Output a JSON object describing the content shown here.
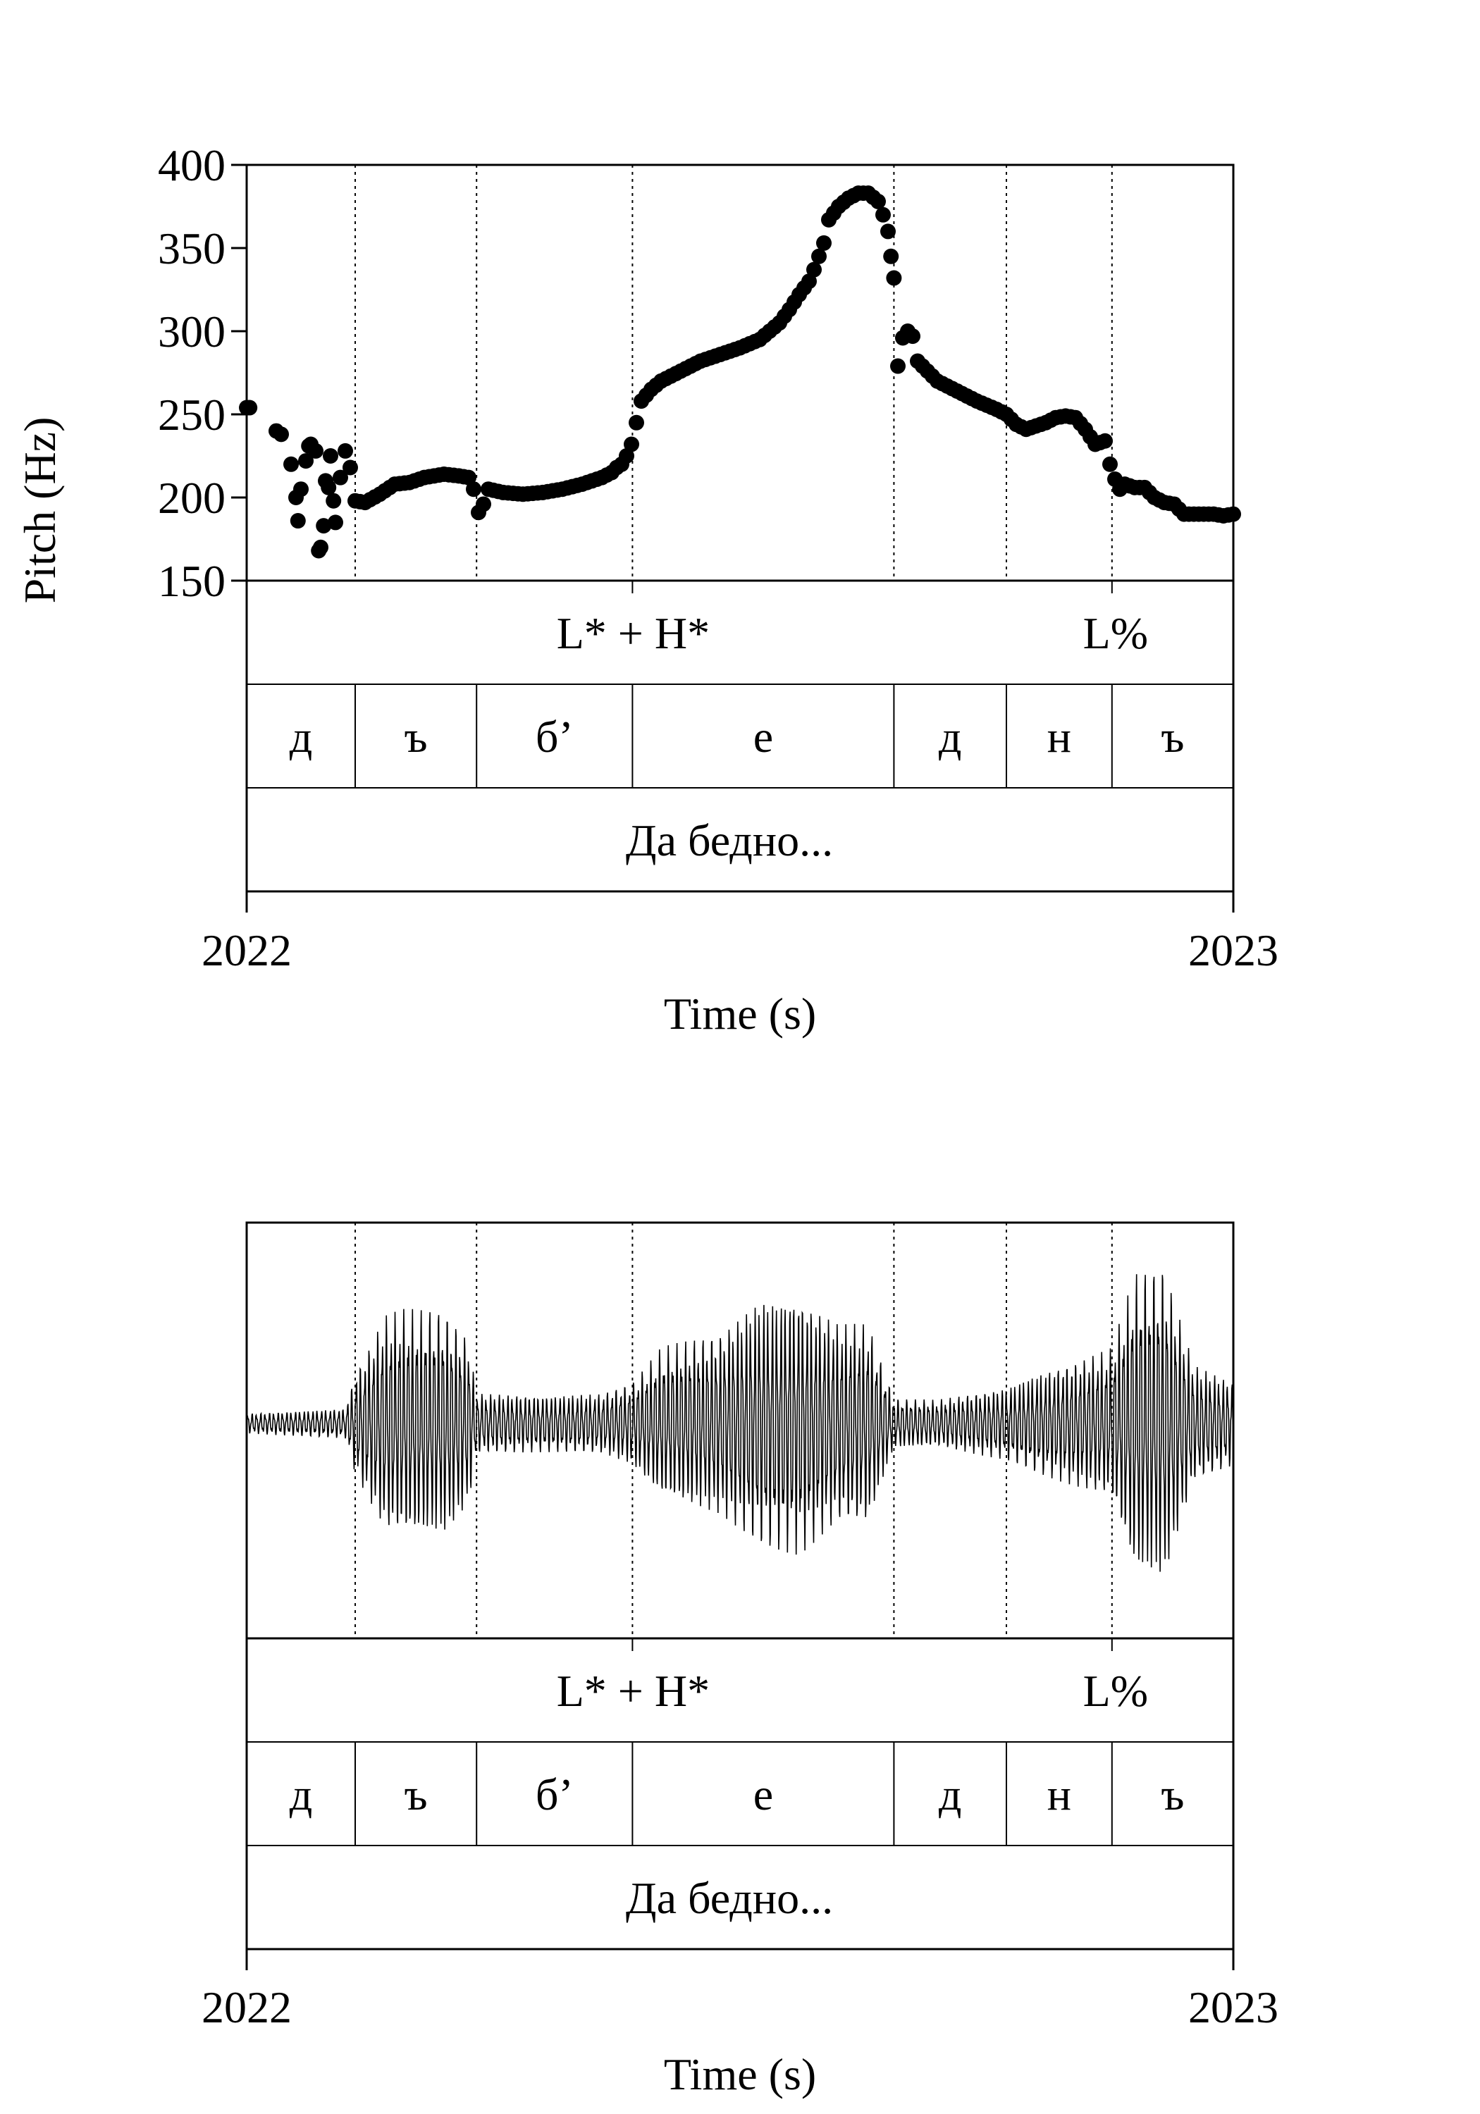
{
  "chart_data": [
    {
      "type": "scatter",
      "ylabel": "Pitch (Hz)",
      "xlabel": "Time (s)",
      "x_tick_labels": [
        "2022",
        "2023"
      ],
      "y_tick_labels": [
        "400",
        "350",
        "300",
        "250",
        "200",
        "150"
      ],
      "ylim": [
        150,
        400
      ],
      "xlim": [
        2022.0,
        2023.0
      ],
      "grid": false,
      "boundaries": [
        2022.11,
        2022.233,
        2022.391,
        2022.656,
        2022.77,
        2022.877
      ],
      "tiers": {
        "tones": [
          {
            "label": "L* + H*",
            "x": 2022.391
          },
          {
            "label": "L%",
            "x": 2022.877
          }
        ],
        "segments": [
          "д",
          "ъ",
          "б’",
          "е",
          "д",
          "н",
          "ъ"
        ],
        "words": [
          "Да бедно..."
        ]
      },
      "series": [
        {
          "x": [
            2022.0,
            2022.003,
            2022.03,
            2022.035,
            2022.045,
            2022.05,
            2022.052,
            2022.055,
            2022.06,
            2022.063,
            2022.065,
            2022.07,
            2022.073,
            2022.075,
            2022.078,
            2022.08,
            2022.083,
            2022.085,
            2022.088,
            2022.09,
            2022.095,
            2022.1,
            2022.105,
            2022.11,
            2022.12,
            2022.135,
            2022.15,
            2022.165,
            2022.18,
            2022.2,
            2022.215,
            2022.225,
            2022.23,
            2022.235,
            2022.24,
            2022.245,
            2022.26,
            2022.28,
            2022.3,
            2022.32,
            2022.34,
            2022.36,
            2022.37,
            2022.375,
            2022.38,
            2022.385,
            2022.39,
            2022.395,
            2022.4,
            2022.41,
            2022.42,
            2022.44,
            2022.46,
            2022.48,
            2022.5,
            2022.52,
            2022.54,
            2022.55,
            2022.56,
            2022.57,
            2022.575,
            2022.58,
            2022.585,
            2022.59,
            2022.6,
            2022.61,
            2022.62,
            2022.63,
            2022.64,
            2022.645,
            2022.65,
            2022.653,
            2022.656,
            2022.66,
            2022.665,
            2022.67,
            2022.675,
            2022.68,
            2022.69,
            2022.7,
            2022.72,
            2022.74,
            2022.76,
            2022.77,
            2022.78,
            2022.79,
            2022.8,
            2022.81,
            2022.82,
            2022.83,
            2022.84,
            2022.85,
            2022.86,
            2022.87,
            2022.875,
            2022.88,
            2022.885,
            2022.89,
            2022.9,
            2022.91,
            2022.92,
            2022.93,
            2022.94,
            2022.95,
            2022.96,
            2022.97,
            2022.98,
            2022.99,
            2023.0
          ],
          "y": [
            254,
            254,
            240,
            238,
            220,
            200,
            186,
            205,
            222,
            231,
            232,
            228,
            168,
            170,
            183,
            210,
            206,
            225,
            198,
            185,
            212,
            228,
            218,
            198,
            197,
            202,
            208,
            209,
            212,
            214,
            213,
            212,
            205,
            191,
            196,
            205,
            203,
            202,
            203,
            205,
            208,
            212,
            215,
            218,
            220,
            225,
            232,
            245,
            258,
            265,
            270,
            276,
            282,
            286,
            290,
            295,
            305,
            313,
            322,
            330,
            337,
            345,
            353,
            367,
            375,
            380,
            383,
            383,
            378,
            370,
            360,
            345,
            332,
            279,
            296,
            300,
            297,
            282,
            276,
            270,
            264,
            258,
            253,
            250,
            244,
            241,
            243,
            245,
            248,
            249,
            248,
            241,
            232,
            234,
            220,
            211,
            205,
            208,
            206,
            206,
            200,
            197,
            196,
            190,
            190,
            190,
            190,
            189,
            190
          ]
        }
      ]
    },
    {
      "type": "line",
      "xlabel": "Time (s)",
      "x_tick_labels": [
        "2022",
        "2023"
      ],
      "xlim": [
        2022.0,
        2023.0
      ],
      "grid": false,
      "boundaries": [
        2022.11,
        2022.233,
        2022.391,
        2022.656,
        2022.77,
        2022.877
      ],
      "tiers": {
        "tones": [
          {
            "label": "L* + H*",
            "x": 2022.391
          },
          {
            "label": "L%",
            "x": 2022.877
          }
        ],
        "segments": [
          "д",
          "ъ",
          "б’",
          "е",
          "д",
          "н",
          "ъ"
        ],
        "words": [
          "Да бедно..."
        ]
      },
      "waveform_envelope": {
        "x": [
          2022.0,
          2022.1,
          2022.11,
          2022.14,
          2022.16,
          2022.2,
          2022.225,
          2022.233,
          2022.3,
          2022.36,
          2022.391,
          2022.42,
          2022.48,
          2022.52,
          2022.56,
          2022.6,
          2022.63,
          2022.656,
          2022.7,
          2022.77,
          2022.8,
          2022.877,
          2022.9,
          2022.93,
          2022.96,
          2023.0
        ],
        "amplitude": [
          0.06,
          0.09,
          0.3,
          0.65,
          0.68,
          0.68,
          0.5,
          0.18,
          0.17,
          0.18,
          0.25,
          0.45,
          0.55,
          0.75,
          0.78,
          0.6,
          0.6,
          0.15,
          0.14,
          0.22,
          0.3,
          0.45,
          0.9,
          0.95,
          0.35,
          0.25
        ]
      }
    }
  ]
}
